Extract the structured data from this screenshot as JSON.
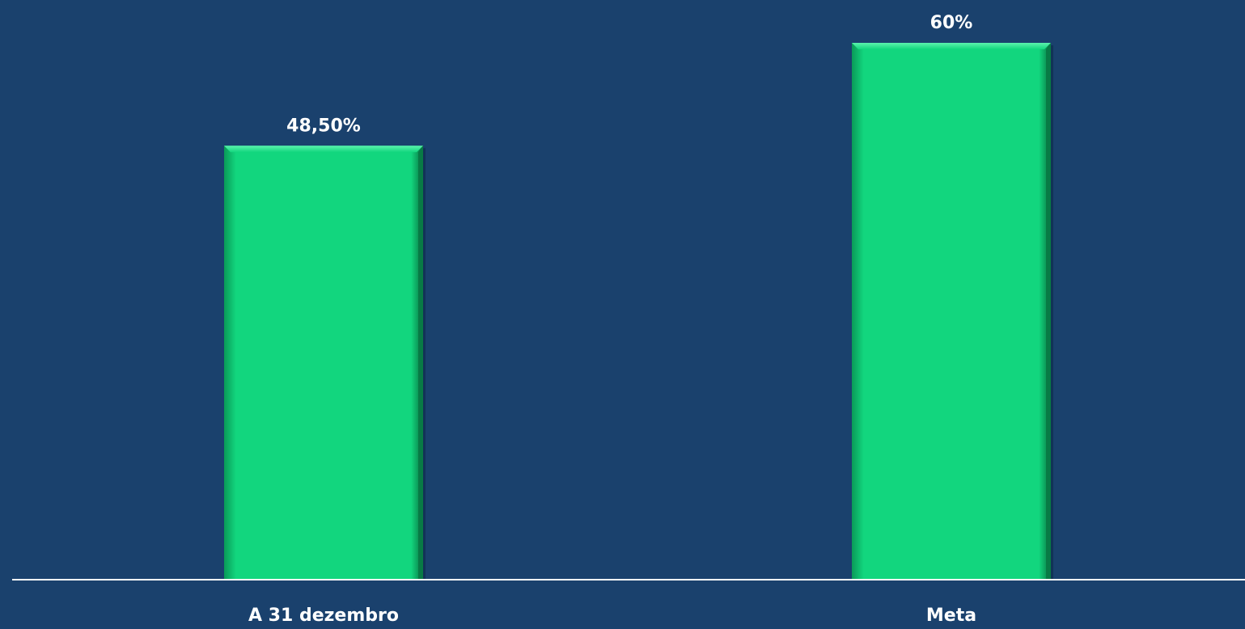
{
  "chart_data": {
    "type": "bar",
    "categories": [
      "A 31 dezembro",
      "Meta"
    ],
    "values": [
      48.5,
      60
    ],
    "data_labels": [
      "48,50%",
      "60%"
    ],
    "title": "",
    "xlabel": "",
    "ylabel": "",
    "ylim": [
      0,
      60
    ],
    "grid": false,
    "legend": "none",
    "bar_color": "#12d67e",
    "background_color": "#1a416d",
    "axis_color": "#ffffff"
  }
}
